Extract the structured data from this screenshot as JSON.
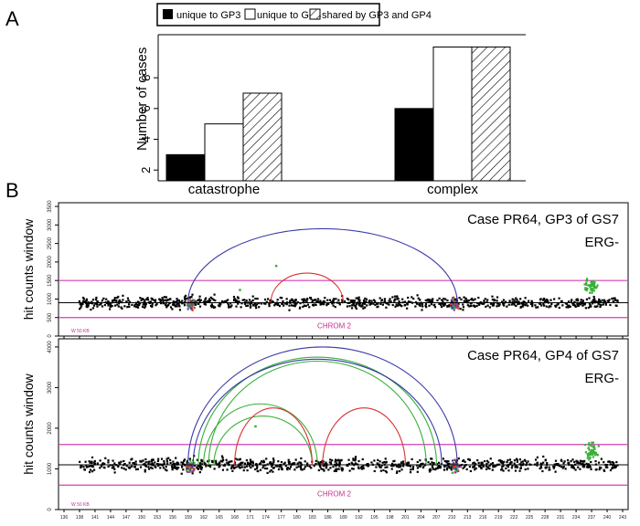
{
  "panels": {
    "a_label": "A",
    "b_label": "B"
  },
  "colors": {
    "gp3_bar": "#000000",
    "gp4_bar": "#ffffff",
    "arc_blue": "#3a3aa8",
    "arc_red": "#d83030",
    "arc_green": "#38b038",
    "magenta_line": "#d040b0",
    "chrom_text": "#c03090"
  },
  "chart_data": [
    {
      "type": "bar",
      "panel": "A",
      "categories": [
        "catastrophe",
        "complex"
      ],
      "series": [
        {
          "name": "unique to GP3",
          "values": [
            3,
            6
          ],
          "fill": "solid-black"
        },
        {
          "name": "unique to GP4",
          "values": [
            5,
            10
          ],
          "fill": "white"
        },
        {
          "name": "shared by GP3 and GP4",
          "values": [
            7,
            10
          ],
          "fill": "hatched"
        }
      ],
      "ylabel": "Number  of cases",
      "yticks": [
        2,
        4,
        6,
        8
      ],
      "ylim": [
        1.3,
        10.8
      ],
      "legend": "top"
    },
    {
      "type": "scatter",
      "panel": "B-top",
      "title": "Case PR64, GP3 of GS7",
      "subtitle": "ERG-",
      "ylabel": "hit counts window",
      "yticks": [
        0,
        500,
        1000,
        1500,
        2000,
        2500,
        3000,
        3500
      ],
      "ylim": [
        0,
        3600
      ],
      "xlim": [
        135,
        245
      ],
      "chrom_label": "CHROM  2",
      "window_label": "W  50 KB",
      "hlines": {
        "mean": 900,
        "upper": 1500,
        "lower": 500
      },
      "arcs": [
        {
          "color": "blue",
          "x1": 160,
          "x2": 212,
          "peak": 2900
        },
        {
          "color": "red",
          "x1": 176,
          "x2": 190,
          "peak": 1700
        }
      ],
      "green_points": [
        [
          177,
          1900
        ],
        [
          170,
          1250
        ],
        [
          238,
          1400
        ]
      ]
    },
    {
      "type": "scatter",
      "panel": "B-bottom",
      "title": "Case PR64, GP4 of GS7",
      "subtitle": "ERG-",
      "ylabel": "hit counts window",
      "yticks": [
        0,
        1000,
        2000,
        3000,
        4000
      ],
      "ylim": [
        0,
        4200
      ],
      "xlim": [
        135,
        245
      ],
      "chrom_label": "CHROM  2",
      "window_label": "W  50 KB",
      "hlines": {
        "mean": 1100,
        "upper": 1600,
        "lower": 600
      },
      "arcs": [
        {
          "color": "blue",
          "x1": 160,
          "x2": 212,
          "peak": 4000
        },
        {
          "color": "green",
          "x1": 162,
          "x2": 208,
          "peak": 3750
        },
        {
          "color": "green",
          "x1": 164,
          "x2": 206,
          "peak": 3650
        },
        {
          "color": "blue",
          "x1": 161,
          "x2": 209,
          "peak": 3700
        },
        {
          "color": "green",
          "x1": 163,
          "x2": 185,
          "peak": 2600
        },
        {
          "color": "green",
          "x1": 165,
          "x2": 184,
          "peak": 2300
        },
        {
          "color": "red",
          "x1": 169,
          "x2": 184,
          "peak": 2500
        },
        {
          "color": "red",
          "x1": 186,
          "x2": 202,
          "peak": 2500
        }
      ],
      "green_points": [
        [
          173,
          2050
        ],
        [
          238,
          1650
        ]
      ]
    }
  ],
  "x_axis_ticks": [
    "136",
    "138",
    "141",
    "144",
    "147",
    "150",
    "153",
    "156",
    "159",
    "162",
    "165",
    "168",
    "171",
    "174",
    "177",
    "180",
    "183",
    "186",
    "189",
    "192",
    "195",
    "198",
    "201",
    "204",
    "207",
    "210",
    "213",
    "216",
    "219",
    "222",
    "225",
    "228",
    "231",
    "234",
    "237",
    "240",
    "243"
  ]
}
